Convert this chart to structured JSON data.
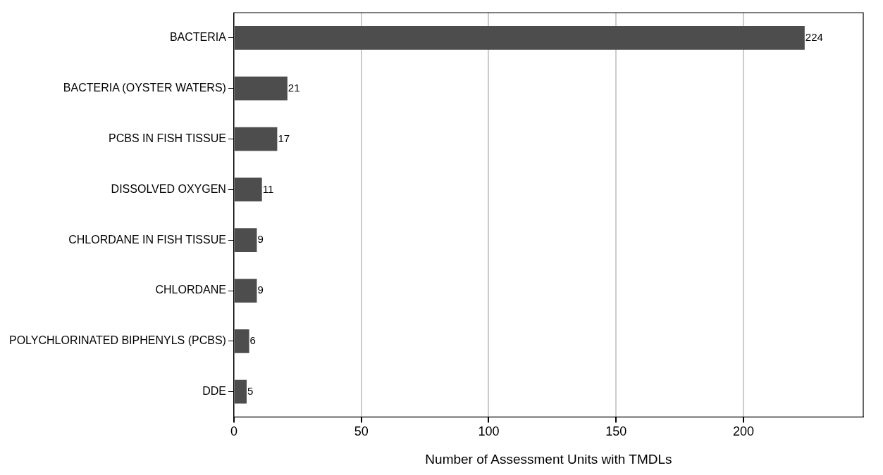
{
  "chart_data": {
    "type": "bar",
    "orientation": "horizontal",
    "categories": [
      "BACTERIA",
      "BACTERIA (OYSTER WATERS)",
      "PCBS IN FISH TISSUE",
      "DISSOLVED OXYGEN",
      "CHLORDANE IN FISH TISSUE",
      "CHLORDANE",
      "POLYCHLORINATED BIPHENYLS (PCBS)",
      "DDE"
    ],
    "values": [
      224,
      21,
      17,
      11,
      9,
      9,
      6,
      5
    ],
    "color": "#4d4d4d",
    "xlim": [
      0,
      247
    ],
    "xticks": [
      0,
      50,
      100,
      150,
      200
    ],
    "xlabel": "Number of Assessment Units with TMDLs",
    "grid": "x",
    "data_labels": true
  }
}
